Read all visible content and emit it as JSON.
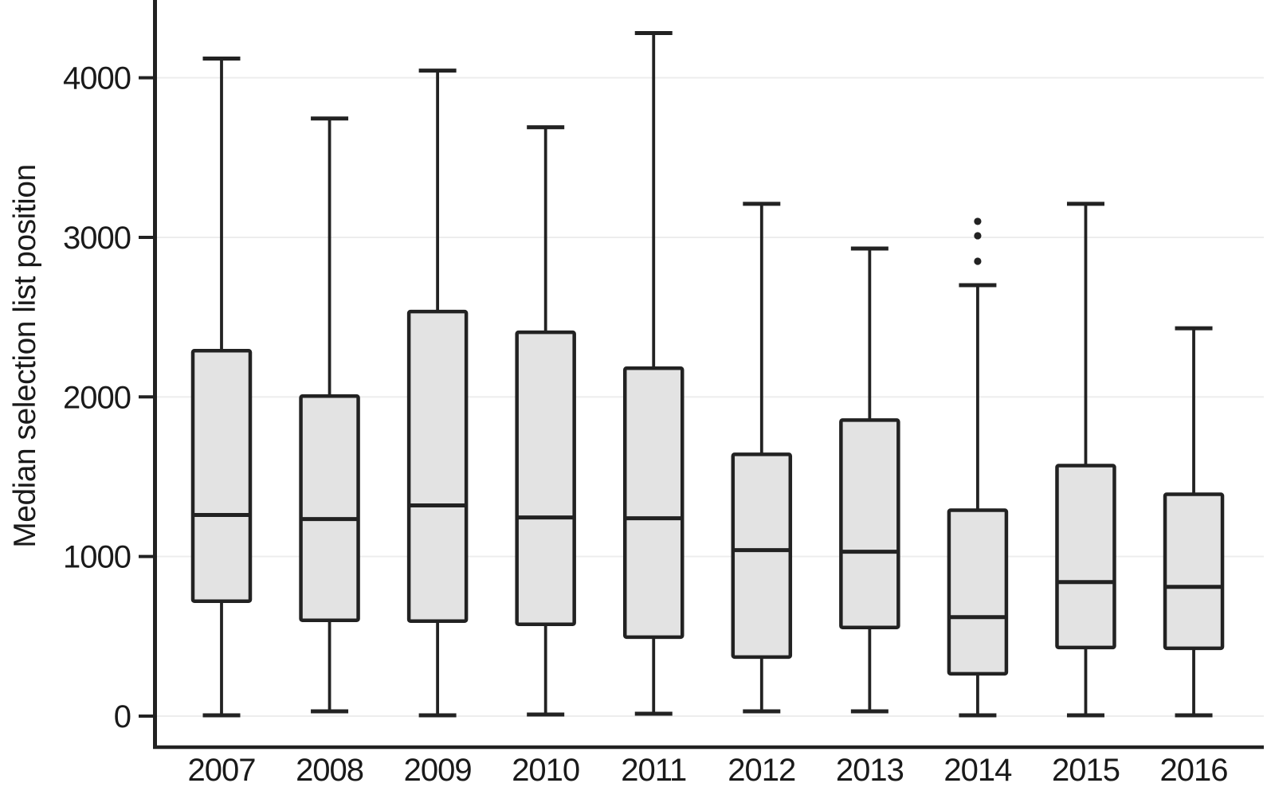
{
  "figure": {
    "background": "#ffffff"
  },
  "chart_data": {
    "type": "boxplot",
    "title": "",
    "xlabel": "",
    "ylabel": "Median selection list position",
    "categories": [
      "2007",
      "2008",
      "2009",
      "2010",
      "2011",
      "2012",
      "2013",
      "2014",
      "2015",
      "2016"
    ],
    "yticks": [
      0,
      1000,
      2000,
      3000,
      4000
    ],
    "ylim": [
      0,
      4490
    ],
    "grid": "horizontal",
    "legend": "none",
    "boxes": [
      {
        "year": "2007",
        "whisker_low": 5,
        "q1": 720,
        "median": 1260,
        "q3": 2290,
        "whisker_high": 4120,
        "outliers": []
      },
      {
        "year": "2008",
        "whisker_low": 30,
        "q1": 600,
        "median": 1235,
        "q3": 2005,
        "whisker_high": 3745,
        "outliers": []
      },
      {
        "year": "2009",
        "whisker_low": 5,
        "q1": 595,
        "median": 1320,
        "q3": 2535,
        "whisker_high": 4045,
        "outliers": []
      },
      {
        "year": "2010",
        "whisker_low": 10,
        "q1": 575,
        "median": 1245,
        "q3": 2405,
        "whisker_high": 3690,
        "outliers": []
      },
      {
        "year": "2011",
        "whisker_low": 15,
        "q1": 495,
        "median": 1240,
        "q3": 2180,
        "whisker_high": 4280,
        "outliers": []
      },
      {
        "year": "2012",
        "whisker_low": 30,
        "q1": 370,
        "median": 1040,
        "q3": 1640,
        "whisker_high": 3210,
        "outliers": []
      },
      {
        "year": "2013",
        "whisker_low": 30,
        "q1": 555,
        "median": 1030,
        "q3": 1855,
        "whisker_high": 2930,
        "outliers": []
      },
      {
        "year": "2014",
        "whisker_low": 5,
        "q1": 265,
        "median": 620,
        "q3": 1290,
        "whisker_high": 2700,
        "outliers": [
          2850,
          3010,
          3100
        ]
      },
      {
        "year": "2015",
        "whisker_low": 5,
        "q1": 430,
        "median": 840,
        "q3": 1570,
        "whisker_high": 3210,
        "outliers": []
      },
      {
        "year": "2016",
        "whisker_low": 5,
        "q1": 425,
        "median": 810,
        "q3": 1390,
        "whisker_high": 2430,
        "outliers": []
      }
    ],
    "colors": {
      "box_fill": "#e3e3e3",
      "line": "#222222",
      "gridline": "#ededed",
      "text": "#1a1a1a"
    }
  }
}
